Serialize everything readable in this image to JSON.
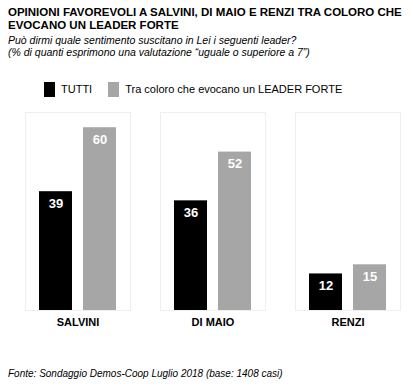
{
  "chart_data": {
    "type": "bar",
    "title": "OPINIONI FAVOREVOLI A SALVINI, DI MAIO E RENZI TRA COLORO CHE EVOCANO UN LEADER FORTE",
    "subtitle": "Può dirmi quale sentimento suscitano in Lei i seguenti leader?\n(% di quanti esprimono una valutazione “uguale o superiore a 7”)",
    "caption": "Fonte: Sondaggio Demos-Coop Luglio 2018 (base: 1408 casi)",
    "categories": [
      "SALVINI",
      "DI MAIO",
      "RENZI"
    ],
    "series": [
      {
        "name": "TUTTI",
        "color": "#000000",
        "values": [
          39,
          36,
          12
        ]
      },
      {
        "name": "Tra coloro che evocano un LEADER FORTE",
        "color": "#a6a6a6",
        "values": [
          60,
          52,
          15
        ]
      }
    ],
    "ylim": [
      0,
      65
    ],
    "legend": "top",
    "data_labels": true,
    "tick_labels": "x"
  }
}
